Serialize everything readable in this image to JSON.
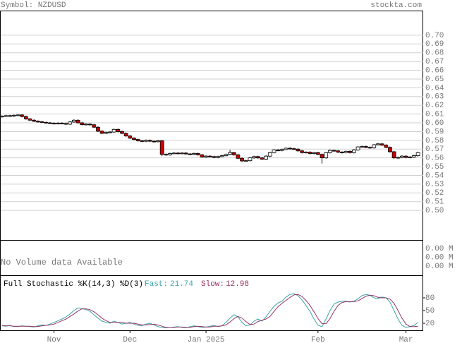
{
  "header": {
    "symbol": "Symbol: NZDUSD",
    "site": "stockta.com"
  },
  "chart_data": [
    {
      "type": "candlestick",
      "grid": true,
      "up_color": "#ffffff",
      "down_color": "#cc0000",
      "xlim": [
        -0.5,
        105.3
      ],
      "ylim": [
        0.4663,
        0.7273
      ],
      "yticks": [
        {
          "value": 0.7,
          "label": "0.70"
        },
        {
          "value": 0.69,
          "label": "0.69"
        },
        {
          "value": 0.68,
          "label": "0.68"
        },
        {
          "value": 0.67,
          "label": "0.67"
        },
        {
          "value": 0.66,
          "label": "0.66"
        },
        {
          "value": 0.65,
          "label": "0.65"
        },
        {
          "value": 0.64,
          "label": "0.64"
        },
        {
          "value": 0.63,
          "label": "0.63"
        },
        {
          "value": 0.62,
          "label": "0.62"
        },
        {
          "value": 0.61,
          "label": "0.61"
        },
        {
          "value": 0.6,
          "label": "0.60"
        },
        {
          "value": 0.59,
          "label": "0.59"
        },
        {
          "value": 0.58,
          "label": "0.58"
        },
        {
          "value": 0.57,
          "label": "0.57"
        },
        {
          "value": 0.56,
          "label": "0.56"
        },
        {
          "value": 0.55,
          "label": "0.55"
        },
        {
          "value": 0.54,
          "label": "0.54"
        },
        {
          "value": 0.53,
          "label": "0.53"
        },
        {
          "value": 0.52,
          "label": "0.52"
        },
        {
          "value": 0.51,
          "label": "0.51"
        },
        {
          "value": 0.5,
          "label": "0.50"
        }
      ],
      "open": [
        0.607,
        0.6075,
        0.6082,
        0.6078,
        0.6086,
        0.609,
        0.6072,
        0.6045,
        0.603,
        0.6018,
        0.6012,
        0.6005,
        0.6,
        0.5995,
        0.599,
        0.5996,
        0.5992,
        0.5985,
        0.601,
        0.603,
        0.6,
        0.598,
        0.5985,
        0.5978,
        0.595,
        0.5905,
        0.588,
        0.589,
        0.5895,
        0.5925,
        0.59,
        0.588,
        0.585,
        0.5825,
        0.581,
        0.5795,
        0.579,
        0.58,
        0.579,
        0.5785,
        0.5795,
        0.564,
        0.5635,
        0.565,
        0.5655,
        0.565,
        0.5655,
        0.5645,
        0.564,
        0.565,
        0.5635,
        0.561,
        0.562,
        0.5615,
        0.5605,
        0.5615,
        0.5625,
        0.564,
        0.566,
        0.5635,
        0.5595,
        0.5565,
        0.5568,
        0.56,
        0.5615,
        0.56,
        0.5585,
        0.562,
        0.566,
        0.569,
        0.5685,
        0.5695,
        0.571,
        0.5705,
        0.57,
        0.568,
        0.566,
        0.5665,
        0.565,
        0.566,
        0.564,
        0.56,
        0.566,
        0.5685,
        0.568,
        0.5665,
        0.566,
        0.5675,
        0.566,
        0.569,
        0.5725,
        0.573,
        0.572,
        0.5715,
        0.575,
        0.576,
        0.5745,
        0.572,
        0.567,
        0.56,
        0.5605,
        0.562,
        0.5605,
        0.561,
        0.5625
      ],
      "high": [
        0.6085,
        0.6092,
        0.6092,
        0.6096,
        0.61,
        0.61,
        0.6082,
        0.6055,
        0.604,
        0.6028,
        0.6022,
        0.6015,
        0.601,
        0.6005,
        0.6006,
        0.6006,
        0.6002,
        0.602,
        0.604,
        0.604,
        0.601,
        0.5995,
        0.5995,
        0.5988,
        0.596,
        0.5915,
        0.59,
        0.5905,
        0.5935,
        0.5935,
        0.591,
        0.589,
        0.586,
        0.5835,
        0.582,
        0.5805,
        0.581,
        0.581,
        0.58,
        0.5805,
        0.5805,
        0.565,
        0.566,
        0.5665,
        0.5665,
        0.5665,
        0.5665,
        0.5655,
        0.566,
        0.566,
        0.5645,
        0.563,
        0.563,
        0.5625,
        0.5625,
        0.5635,
        0.565,
        0.569,
        0.567,
        0.5645,
        0.5605,
        0.5578,
        0.561,
        0.5625,
        0.5625,
        0.561,
        0.563,
        0.567,
        0.57,
        0.57,
        0.5705,
        0.572,
        0.572,
        0.5715,
        0.571,
        0.569,
        0.5675,
        0.5675,
        0.567,
        0.567,
        0.565,
        0.567,
        0.5695,
        0.5695,
        0.569,
        0.5675,
        0.5685,
        0.5685,
        0.57,
        0.5735,
        0.574,
        0.574,
        0.573,
        0.576,
        0.577,
        0.577,
        0.5755,
        0.573,
        0.568,
        0.5615,
        0.563,
        0.563,
        0.562,
        0.5635,
        0.567
      ],
      "low": [
        0.606,
        0.6065,
        0.6068,
        0.6068,
        0.6076,
        0.6062,
        0.6035,
        0.602,
        0.6008,
        0.6002,
        0.5995,
        0.599,
        0.5985,
        0.598,
        0.598,
        0.5982,
        0.5975,
        0.5975,
        0.6,
        0.599,
        0.597,
        0.597,
        0.5968,
        0.594,
        0.5895,
        0.587,
        0.587,
        0.588,
        0.5885,
        0.589,
        0.587,
        0.584,
        0.5815,
        0.58,
        0.5785,
        0.578,
        0.578,
        0.578,
        0.5775,
        0.5775,
        0.562,
        0.5625,
        0.5625,
        0.564,
        0.564,
        0.564,
        0.5635,
        0.563,
        0.563,
        0.5625,
        0.56,
        0.56,
        0.5605,
        0.5595,
        0.5595,
        0.5605,
        0.5615,
        0.563,
        0.5625,
        0.5585,
        0.5555,
        0.5555,
        0.5558,
        0.559,
        0.559,
        0.5575,
        0.5575,
        0.561,
        0.565,
        0.5675,
        0.5675,
        0.5685,
        0.5695,
        0.569,
        0.567,
        0.565,
        0.565,
        0.564,
        0.564,
        0.563,
        0.5535,
        0.559,
        0.565,
        0.567,
        0.5655,
        0.565,
        0.565,
        0.565,
        0.565,
        0.568,
        0.5715,
        0.571,
        0.5705,
        0.5705,
        0.574,
        0.5735,
        0.571,
        0.566,
        0.559,
        0.559,
        0.5595,
        0.5595,
        0.5595,
        0.56,
        0.5615
      ],
      "close": [
        0.6075,
        0.6082,
        0.6078,
        0.6086,
        0.609,
        0.6072,
        0.6045,
        0.603,
        0.6018,
        0.6012,
        0.6005,
        0.6,
        0.5995,
        0.599,
        0.5996,
        0.5992,
        0.5985,
        0.601,
        0.603,
        0.6,
        0.598,
        0.5985,
        0.5978,
        0.595,
        0.5905,
        0.588,
        0.589,
        0.5895,
        0.5925,
        0.59,
        0.588,
        0.585,
        0.5825,
        0.581,
        0.5795,
        0.579,
        0.58,
        0.579,
        0.5785,
        0.5795,
        0.564,
        0.5635,
        0.565,
        0.5655,
        0.565,
        0.5655,
        0.5645,
        0.564,
        0.565,
        0.5635,
        0.561,
        0.562,
        0.5615,
        0.5605,
        0.5615,
        0.5625,
        0.564,
        0.566,
        0.5635,
        0.5595,
        0.5565,
        0.5568,
        0.56,
        0.5615,
        0.56,
        0.5585,
        0.562,
        0.566,
        0.569,
        0.5685,
        0.5695,
        0.571,
        0.5705,
        0.57,
        0.568,
        0.566,
        0.5665,
        0.565,
        0.566,
        0.564,
        0.56,
        0.566,
        0.5685,
        0.568,
        0.5665,
        0.566,
        0.5675,
        0.566,
        0.569,
        0.5725,
        0.573,
        0.572,
        0.5715,
        0.575,
        0.576,
        0.5745,
        0.572,
        0.567,
        0.56,
        0.5605,
        0.562,
        0.5605,
        0.561,
        0.5625,
        0.566
      ]
    },
    {
      "type": "volume",
      "message": "No Volume data Available",
      "axis_labels": [
        "0.00 M",
        "0.00 M",
        "0.00 M"
      ]
    },
    {
      "type": "line",
      "title": "Full Stochastic %K(14,3) %D(3)",
      "xlim": [
        -0.5,
        105.3
      ],
      "ylim": [
        3.3,
        131.7
      ],
      "yticks": [
        80,
        50,
        20
      ],
      "xticks": [
        {
          "value": 13,
          "label": "Nov"
        },
        {
          "value": 32,
          "label": "Dec"
        },
        {
          "value": 51,
          "label": "Jan 2025"
        },
        {
          "value": 79,
          "label": "Feb"
        },
        {
          "value": 101,
          "label": "Mar"
        }
      ],
      "series": [
        {
          "name": "Fast:",
          "color": "#3aa6a6",
          "values": [
            14,
            13,
            15,
            12,
            12,
            14,
            13,
            12,
            11,
            14,
            16,
            15,
            18,
            22,
            26,
            30,
            35,
            42,
            50,
            56,
            55,
            52,
            48,
            40,
            32,
            25,
            22,
            20,
            25,
            22,
            18,
            20,
            22,
            18,
            15,
            14,
            18,
            20,
            16,
            12,
            10,
            9,
            10,
            11,
            12,
            10,
            9,
            12,
            14,
            12,
            10,
            11,
            13,
            15,
            12,
            14,
            22,
            32,
            40,
            35,
            22,
            14,
            16,
            25,
            30,
            25,
            35,
            48,
            60,
            68,
            72,
            82,
            88,
            90,
            85,
            75,
            62,
            48,
            30,
            15,
            12,
            30,
            50,
            65,
            70,
            72,
            72,
            70,
            72,
            78,
            85,
            88,
            86,
            80,
            78,
            82,
            80,
            70,
            50,
            30,
            15,
            10,
            12,
            15,
            21.74
          ]
        },
        {
          "name": "Slow:",
          "color": "#993366",
          "values": [
            15,
            14,
            14,
            13,
            13,
            13,
            13,
            13,
            12,
            12,
            14,
            15,
            16,
            18,
            22,
            26,
            30,
            36,
            42,
            49,
            54,
            54,
            52,
            47,
            40,
            32,
            26,
            22,
            22,
            22,
            22,
            20,
            20,
            20,
            18,
            16,
            16,
            17,
            18,
            16,
            13,
            10,
            10,
            10,
            11,
            11,
            10,
            10,
            12,
            13,
            12,
            11,
            11,
            13,
            13,
            14,
            16,
            23,
            31,
            36,
            32,
            24,
            17,
            18,
            24,
            27,
            30,
            36,
            48,
            59,
            67,
            74,
            81,
            87,
            88,
            83,
            74,
            62,
            47,
            31,
            19,
            19,
            31,
            48,
            62,
            69,
            71,
            71,
            71,
            73,
            78,
            84,
            86,
            85,
            81,
            80,
            80,
            77,
            67,
            50,
            32,
            18,
            12,
            12,
            12.98
          ]
        }
      ]
    }
  ]
}
